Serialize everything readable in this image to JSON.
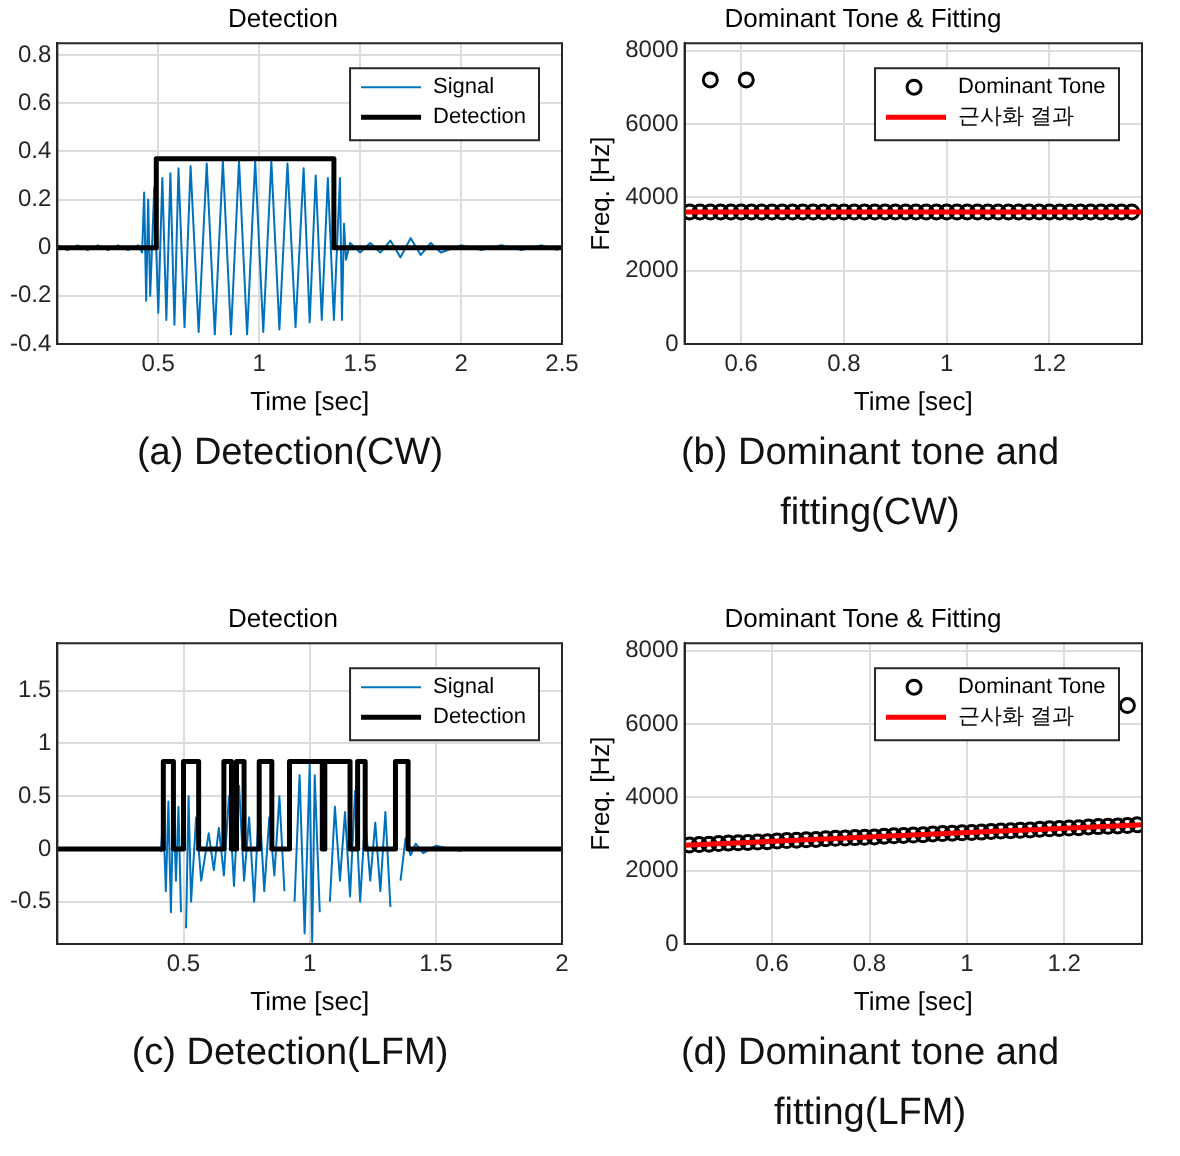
{
  "chart_data": [
    {
      "type": "line",
      "title": "Detection",
      "xlabel": "Time [sec]",
      "xlim": [
        0,
        2.5
      ],
      "xticks": [
        0.5,
        1,
        1.5,
        2,
        2.5
      ],
      "ylim": [
        -0.4,
        0.85
      ],
      "yticks": [
        -0.4,
        -0.2,
        0,
        0.2,
        0.4,
        0.6,
        0.8
      ],
      "grid": true,
      "legend": "top right",
      "annotations": [
        "(a) Detection(CW)"
      ],
      "series": [
        {
          "name": "Signal",
          "color": "#0072bd",
          "x": [
            0,
            0.05,
            0.1,
            0.15,
            0.2,
            0.25,
            0.3,
            0.35,
            0.4,
            0.42,
            0.43,
            0.44,
            0.45,
            0.46,
            0.48,
            0.5,
            0.52,
            0.54,
            0.56,
            0.58,
            0.6,
            0.63,
            0.66,
            0.7,
            0.74,
            0.78,
            0.82,
            0.86,
            0.9,
            0.94,
            0.98,
            1.02,
            1.06,
            1.1,
            1.14,
            1.18,
            1.22,
            1.25,
            1.28,
            1.31,
            1.34,
            1.37,
            1.4,
            1.41,
            1.42,
            1.43,
            1.45,
            1.5,
            1.55,
            1.6,
            1.65,
            1.7,
            1.75,
            1.8,
            1.85,
            1.9,
            2,
            2.1,
            2.2,
            2.3,
            2.4,
            2.48
          ],
          "values": [
            0.01,
            -0.01,
            0.01,
            -0.01,
            0.01,
            -0.01,
            0.01,
            -0.01,
            0.01,
            -0.02,
            0.23,
            -0.22,
            0.2,
            -0.2,
            0.25,
            -0.27,
            0.29,
            -0.3,
            0.31,
            -0.32,
            0.33,
            -0.33,
            0.34,
            -0.35,
            0.35,
            -0.36,
            0.36,
            -0.36,
            0.36,
            -0.36,
            0.36,
            -0.35,
            0.36,
            -0.34,
            0.35,
            -0.33,
            0.33,
            -0.31,
            0.3,
            -0.3,
            0.29,
            -0.3,
            0.29,
            -0.3,
            0.1,
            -0.05,
            0.02,
            -0.02,
            0.02,
            -0.02,
            0.03,
            -0.04,
            0.04,
            -0.03,
            0.02,
            -0.02,
            0.01,
            -0.01,
            0.01,
            -0.01,
            0.01,
            -0.01
          ]
        },
        {
          "name": "Detection",
          "color": "#000000",
          "x": [
            0,
            0.49,
            0.49,
            1.37,
            1.37,
            2.5
          ],
          "values": [
            0,
            0,
            0.37,
            0.37,
            0,
            0
          ]
        }
      ]
    },
    {
      "type": "scatter",
      "title": "Dominant Tone & Fitting",
      "xlabel": "Time [sec]",
      "ylabel": "Freq. [Hz]",
      "xlim": [
        0.49,
        1.38
      ],
      "xticks": [
        0.6,
        0.8,
        1,
        1.2
      ],
      "ylim": [
        0,
        8200
      ],
      "yticks": [
        0,
        2000,
        4000,
        6000,
        8000
      ],
      "grid": true,
      "legend": "top right",
      "annotations": [
        "(b) Dominant tone and fitting(CW)"
      ],
      "series": [
        {
          "name": "Dominant Tone",
          "marker": "circle",
          "color": "#000000",
          "x": [
            0.5,
            0.52,
            0.54,
            0.56,
            0.58,
            0.6,
            0.62,
            0.64,
            0.66,
            0.68,
            0.7,
            0.72,
            0.74,
            0.76,
            0.78,
            0.8,
            0.82,
            0.84,
            0.86,
            0.88,
            0.9,
            0.92,
            0.94,
            0.96,
            0.98,
            1,
            1.02,
            1.04,
            1.06,
            1.08,
            1.1,
            1.12,
            1.14,
            1.16,
            1.18,
            1.2,
            1.22,
            1.24,
            1.26,
            1.28,
            1.3,
            1.32,
            1.34,
            1.36,
            0.54,
            0.61
          ],
          "values": [
            3600,
            3600,
            3600,
            3600,
            3600,
            3600,
            3600,
            3600,
            3600,
            3600,
            3600,
            3600,
            3600,
            3600,
            3600,
            3600,
            3600,
            3600,
            3600,
            3600,
            3600,
            3600,
            3600,
            3600,
            3600,
            3600,
            3600,
            3600,
            3600,
            3600,
            3600,
            3600,
            3600,
            3600,
            3600,
            3600,
            3600,
            3600,
            3600,
            3600,
            3600,
            3600,
            3600,
            3600,
            7200,
            7200
          ]
        },
        {
          "name": "근사화 결과",
          "type": "line",
          "color": "#ff0000",
          "x": [
            0.49,
            1.38
          ],
          "values": [
            3600,
            3600
          ]
        }
      ]
    },
    {
      "type": "line",
      "title": "Detection",
      "xlabel": "Time [sec]",
      "xlim": [
        0,
        2
      ],
      "xticks": [
        0.5,
        1,
        1.5,
        2
      ],
      "ylim": [
        -0.9,
        1.95
      ],
      "yticks": [
        -0.5,
        0,
        0.5,
        1,
        1.5
      ],
      "grid": true,
      "legend": "top right",
      "annotations": [
        "(c) Detection(LFM)"
      ],
      "series": [
        {
          "name": "Signal",
          "color": "#0072bd",
          "x": [
            0.3,
            0.4,
            0.41,
            0.42,
            0.43,
            0.44,
            0.45,
            0.46,
            0.47,
            0.48,
            0.49,
            0.5,
            0.51,
            0.52,
            0.53,
            0.55,
            0.57,
            0.6,
            0.62,
            0.64,
            0.66,
            0.68,
            0.7,
            0.72,
            0.74,
            0.76,
            0.78,
            0.8,
            0.82,
            0.84,
            0.86,
            0.88,
            0.9,
            0.92,
            0.94,
            0.96,
            0.98,
            1,
            1.01,
            1.02,
            1.04,
            1.06,
            1.08,
            1.1,
            1.12,
            1.14,
            1.16,
            1.18,
            1.2,
            1.22,
            1.24,
            1.26,
            1.28,
            1.3,
            1.32,
            1.34,
            1.36,
            1.38,
            1.4,
            1.42,
            1.45,
            1.5,
            1.6
          ],
          "values": [
            -0.01,
            0.01,
            -0.02,
            0.3,
            -0.4,
            0.45,
            -0.6,
            0.5,
            -0.3,
            0.4,
            -0.6,
            null,
            -0.75,
            0.5,
            -0.5,
            0.3,
            -0.3,
            0.15,
            -0.2,
            0.2,
            -0.25,
            0.5,
            -0.35,
            0.6,
            -0.3,
            0.3,
            -0.5,
            0.45,
            -0.4,
            0.3,
            -0.25,
            0.5,
            -0.4,
            null,
            -0.5,
            0.7,
            -0.8,
            0.8,
            -0.88,
            0.7,
            -0.6,
            null,
            -0.5,
            0.4,
            -0.3,
            0.35,
            -0.45,
            0.55,
            -0.5,
            0.3,
            -0.3,
            0.25,
            -0.4,
            0.35,
            -0.55,
            null,
            -0.3,
            0.1,
            -0.06,
            0.05,
            -0.04,
            0.03,
            -0.02
          ]
        },
        {
          "name": "Detection",
          "color": "#000000",
          "x": [
            0,
            0.42,
            0.42,
            0.46,
            0.46,
            0.5,
            0.5,
            0.56,
            0.56,
            0.66,
            0.66,
            0.69,
            0.69,
            0.71,
            0.71,
            0.74,
            0.74,
            0.8,
            0.8,
            0.85,
            0.85,
            0.92,
            0.92,
            1.05,
            1.05,
            1.06,
            1.06,
            1.16,
            1.16,
            1.19,
            1.19,
            1.22,
            1.22,
            1.34,
            1.34,
            1.39,
            1.39,
            2
          ],
          "values": [
            0,
            0,
            0.83,
            0.83,
            0,
            0,
            0.83,
            0.83,
            0,
            0,
            0.83,
            0.83,
            0,
            0,
            0.83,
            0.83,
            0,
            0,
            0.83,
            0.83,
            0,
            0,
            0.83,
            0.83,
            0,
            0,
            0.83,
            0.83,
            0,
            0,
            0.83,
            0.83,
            0,
            0,
            0.83,
            0.83,
            0,
            0
          ]
        }
      ]
    },
    {
      "type": "scatter",
      "title": "Dominant Tone & Fitting",
      "xlabel": "Time [sec]",
      "ylabel": "Freq. [Hz]",
      "xlim": [
        0.42,
        1.36
      ],
      "xticks": [
        0.6,
        0.8,
        1,
        1.2
      ],
      "ylim": [
        0,
        8200
      ],
      "yticks": [
        0,
        2000,
        4000,
        6000,
        8000
      ],
      "grid": true,
      "legend": "top right",
      "annotations": [
        "(d) Dominant tone and fitting(LFM)"
      ],
      "series": [
        {
          "name": "Dominant Tone",
          "marker": "circle",
          "color": "#000000",
          "x": [
            0.43,
            0.45,
            0.47,
            0.49,
            0.51,
            0.53,
            0.55,
            0.57,
            0.59,
            0.61,
            0.63,
            0.65,
            0.67,
            0.69,
            0.71,
            0.73,
            0.75,
            0.77,
            0.79,
            0.81,
            0.83,
            0.85,
            0.87,
            0.89,
            0.91,
            0.93,
            0.95,
            0.97,
            0.99,
            1.01,
            1.03,
            1.05,
            1.07,
            1.09,
            1.11,
            1.13,
            1.15,
            1.17,
            1.19,
            1.21,
            1.23,
            1.25,
            1.27,
            1.29,
            1.31,
            1.33,
            1.35,
            1.33
          ],
          "values": [
            2700,
            2710,
            2720,
            2740,
            2750,
            2760,
            2770,
            2780,
            2790,
            2810,
            2820,
            2830,
            2840,
            2850,
            2870,
            2880,
            2890,
            2900,
            2910,
            2920,
            2940,
            2950,
            2960,
            2970,
            2980,
            3000,
            3010,
            3020,
            3030,
            3040,
            3050,
            3070,
            3080,
            3090,
            3100,
            3110,
            3130,
            3140,
            3150,
            3160,
            3170,
            3190,
            3200,
            3210,
            3220,
            3230,
            3250,
            6500
          ]
        },
        {
          "name": "근사화 결과",
          "type": "line",
          "color": "#ff0000",
          "x": [
            0.42,
            1.36
          ],
          "values": [
            2690,
            3250
          ]
        }
      ]
    }
  ]
}
